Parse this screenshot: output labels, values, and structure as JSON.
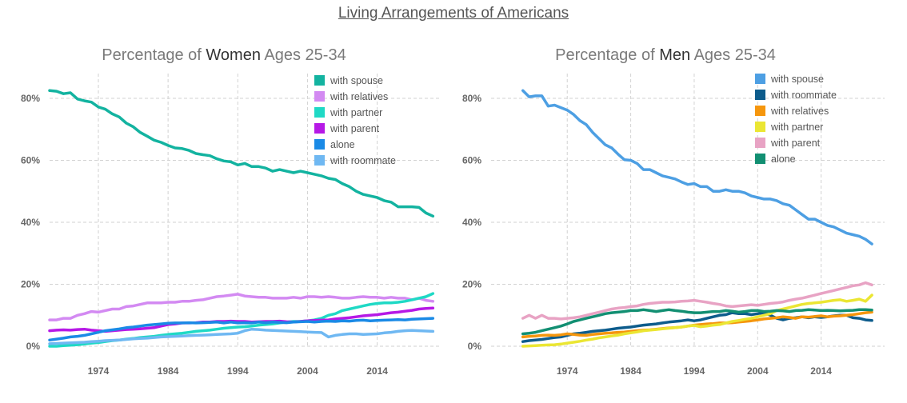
{
  "main_title": "Living Arrangements of Americans",
  "chart_data": [
    {
      "type": "line",
      "title_parts": [
        "Percentage of ",
        "Women",
        " Ages 25-34"
      ],
      "x_ticks": [
        1974,
        1984,
        1994,
        2004,
        2014
      ],
      "y_ticks": [
        "0%",
        "20%",
        "40%",
        "60%",
        "80%"
      ],
      "xlim": [
        1967,
        2023
      ],
      "ylim": [
        0,
        88
      ],
      "grid": true,
      "legend_position": "top-right",
      "x": [
        1967,
        1968,
        1969,
        1970,
        1971,
        1972,
        1973,
        1974,
        1975,
        1976,
        1977,
        1978,
        1979,
        1980,
        1981,
        1982,
        1983,
        1984,
        1985,
        1986,
        1987,
        1988,
        1989,
        1990,
        1991,
        1992,
        1993,
        1994,
        1995,
        1996,
        1997,
        1998,
        1999,
        2000,
        2001,
        2002,
        2003,
        2004,
        2005,
        2006,
        2007,
        2008,
        2009,
        2010,
        2011,
        2012,
        2013,
        2014,
        2015,
        2016,
        2017,
        2018,
        2019,
        2020,
        2021,
        2022
      ],
      "series": [
        {
          "name": "with spouse",
          "color": "#13b3a0",
          "values": [
            82.5,
            82.3,
            81.5,
            81.8,
            79.8,
            79.2,
            78.8,
            77.2,
            76.5,
            75,
            74,
            72,
            70.8,
            69,
            67.8,
            66.5,
            65.8,
            64.8,
            64,
            63.8,
            63.2,
            62.2,
            61.8,
            61.5,
            60.5,
            59.8,
            59.5,
            58.5,
            59,
            58,
            58,
            57.5,
            56.5,
            57,
            56.5,
            56,
            56.5,
            56,
            55.5,
            55,
            54.2,
            53.8,
            52.5,
            51.5,
            50,
            49,
            48.5,
            48,
            47,
            46.5,
            45,
            45,
            45,
            44.8,
            43,
            42
          ]
        },
        {
          "name": "with relatives",
          "color": "#d38af2",
          "values": [
            8.5,
            8.5,
            9,
            9,
            10,
            10.5,
            11.2,
            11,
            11.5,
            12,
            12,
            12.8,
            13,
            13.5,
            14,
            14,
            14,
            14.2,
            14.2,
            14.5,
            14.5,
            14.8,
            15,
            15.5,
            16,
            16.2,
            16.5,
            16.8,
            16.2,
            16,
            15.8,
            15.8,
            15.5,
            15.5,
            15.5,
            15.8,
            15.5,
            16,
            16,
            15.8,
            16,
            15.8,
            15.5,
            15.5,
            15.8,
            16,
            15.8,
            15.8,
            15.5,
            15.8,
            15.5,
            15.5,
            15,
            15.5,
            14.8,
            14.5
          ]
        },
        {
          "name": "with partner",
          "color": "#1fd9c5",
          "values": [
            0,
            0,
            0.2,
            0.3,
            0.5,
            0.7,
            1,
            1.2,
            1.5,
            1.8,
            2,
            2.3,
            2.5,
            2.8,
            3,
            3.2,
            3.5,
            3.8,
            4,
            4.2,
            4.5,
            4.8,
            5,
            5.2,
            5.5,
            5.8,
            6,
            6.2,
            6.3,
            6.5,
            6.8,
            7,
            7.2,
            7.5,
            7.8,
            8,
            8,
            8.2,
            8.5,
            9,
            10,
            10.5,
            11.5,
            12,
            12.5,
            13,
            13.5,
            13.8,
            14,
            14,
            14.2,
            14.5,
            15,
            15.5,
            16,
            17
          ]
        },
        {
          "name": "with parent",
          "color": "#b619e6",
          "values": [
            5,
            5.2,
            5.3,
            5.2,
            5.4,
            5.5,
            5.2,
            5,
            4.8,
            5,
            5.2,
            5.4,
            5.5,
            5.6,
            5.8,
            6,
            6.5,
            7,
            7.2,
            7.5,
            7.5,
            7.6,
            7.8,
            7.8,
            8,
            8,
            8.1,
            8,
            8,
            7.8,
            7.9,
            8,
            8,
            8.1,
            7.9,
            7.8,
            8,
            8.2,
            8.3,
            8.4,
            8.5,
            8.8,
            9,
            9.2,
            9.5,
            9.8,
            10,
            10.2,
            10.5,
            10.8,
            11,
            11.3,
            11.6,
            12,
            12.2,
            12.3
          ]
        },
        {
          "name": "alone",
          "color": "#1a8ae6",
          "values": [
            2,
            2.3,
            2.6,
            3,
            3.2,
            3.5,
            4,
            4.5,
            5,
            5.3,
            5.6,
            6,
            6.2,
            6.5,
            6.8,
            7,
            7.2,
            7.4,
            7.5,
            7.5,
            7.6,
            7.5,
            7.6,
            7.7,
            7.8,
            7.5,
            7.8,
            7.5,
            7.6,
            7.5,
            7.8,
            7.6,
            7.8,
            7.7,
            7.6,
            7.8,
            7.9,
            8,
            7.8,
            8,
            8.1,
            8,
            8.2,
            8.1,
            8.3,
            8.4,
            8.2,
            8.3,
            8.4,
            8.5,
            8.6,
            8.5,
            8.7,
            8.8,
            8.9,
            9
          ]
        },
        {
          "name": "with roommate",
          "color": "#6fb8f2",
          "values": [
            0.8,
            0.9,
            1,
            1.1,
            1.2,
            1.3,
            1.5,
            1.6,
            1.8,
            1.9,
            2,
            2.2,
            2.4,
            2.5,
            2.6,
            2.8,
            3,
            3.1,
            3.2,
            3.3,
            3.4,
            3.5,
            3.6,
            3.7,
            3.8,
            3.9,
            4,
            4.2,
            5,
            5.5,
            5.4,
            5.2,
            5.1,
            5,
            4.9,
            4.8,
            4.7,
            4.6,
            4.5,
            4.4,
            3,
            3.5,
            3.8,
            4,
            4,
            3.8,
            3.9,
            4,
            4.3,
            4.5,
            4.8,
            5,
            5.1,
            5,
            4.9,
            4.8
          ]
        }
      ]
    },
    {
      "type": "line",
      "title_parts": [
        "Percentage of ",
        "Men",
        " Ages 25-34"
      ],
      "x_ticks": [
        1974,
        1984,
        1994,
        2004,
        2014
      ],
      "y_ticks": [
        "0%",
        "20%",
        "40%",
        "60%",
        "80%"
      ],
      "xlim": [
        1962,
        2024
      ],
      "ylim": [
        0,
        88
      ],
      "grid": true,
      "legend_position": "top-right",
      "x": [
        1967,
        1968,
        1969,
        1970,
        1971,
        1972,
        1973,
        1974,
        1975,
        1976,
        1977,
        1978,
        1979,
        1980,
        1981,
        1982,
        1983,
        1984,
        1985,
        1986,
        1987,
        1988,
        1989,
        1990,
        1991,
        1992,
        1993,
        1994,
        1995,
        1996,
        1997,
        1998,
        1999,
        2000,
        2001,
        2002,
        2003,
        2004,
        2005,
        2006,
        2007,
        2008,
        2009,
        2010,
        2011,
        2012,
        2013,
        2014,
        2015,
        2016,
        2017,
        2018,
        2019,
        2020,
        2021,
        2022
      ],
      "series": [
        {
          "name": "with spouse",
          "color": "#4d9fe3",
          "values": [
            82.5,
            80.5,
            80.8,
            80.8,
            77.5,
            77.8,
            77,
            76.2,
            74.8,
            72.8,
            71.5,
            69,
            67,
            65,
            64,
            62,
            60.2,
            60,
            59,
            57,
            57,
            56,
            55,
            54.5,
            54,
            53,
            52.2,
            52.5,
            51.5,
            51.5,
            50,
            50,
            50.5,
            50,
            50,
            49.5,
            48.5,
            48,
            47.5,
            47.5,
            47,
            46,
            45.5,
            44,
            42.5,
            41,
            41,
            40,
            39,
            38.5,
            37.5,
            36.5,
            36,
            35.5,
            34.5,
            33
          ]
        },
        {
          "name": "with roommate",
          "color": "#0d5c8c",
          "values": [
            1.5,
            1.8,
            2,
            2.2,
            2.5,
            2.8,
            3,
            3.5,
            4,
            4.2,
            4.5,
            4.8,
            5,
            5.2,
            5.5,
            5.8,
            6,
            6.2,
            6.5,
            6.8,
            7,
            7.2,
            7.5,
            7.8,
            8,
            8.2,
            8.5,
            8.2,
            8.5,
            9,
            9.5,
            10,
            10.2,
            10.8,
            10.5,
            10.5,
            10.2,
            10.5,
            10.8,
            10,
            9,
            8.5,
            9,
            9.2,
            9.5,
            9.2,
            9.5,
            9.3,
            9.5,
            9.8,
            10,
            10,
            9.2,
            9,
            8.5,
            8.3
          ]
        },
        {
          "name": "with relatives",
          "color": "#f5960d",
          "values": [
            3,
            3.2,
            3.3,
            3.5,
            3.6,
            3.5,
            3.7,
            4,
            3.8,
            3.6,
            3.5,
            3.8,
            4,
            4.2,
            4.3,
            4.5,
            4.6,
            4.8,
            5,
            5.2,
            5.3,
            5.5,
            5.7,
            5.9,
            6,
            6.2,
            6.5,
            6.8,
            7,
            7.2,
            7.3,
            7.5,
            7.5,
            7.6,
            7.8,
            8,
            8.2,
            8.5,
            8.8,
            9,
            9.2,
            9.5,
            9.3,
            9,
            9.5,
            9.4,
            9.6,
            9.8,
            9.5,
            9.7,
            9.8,
            10,
            10.2,
            10.5,
            10.8,
            11
          ]
        },
        {
          "name": "with partner",
          "color": "#ebe633",
          "values": [
            0,
            0.1,
            0.2,
            0.3,
            0.4,
            0.5,
            0.7,
            1,
            1.3,
            1.6,
            2,
            2.3,
            2.7,
            3,
            3.3,
            3.6,
            4,
            4.3,
            4.6,
            5,
            5.2,
            5.4,
            5.6,
            5.8,
            6,
            6.2,
            6.5,
            6.7,
            6.3,
            6.5,
            6.8,
            7,
            7.5,
            8,
            8.3,
            8.7,
            9,
            9.5,
            10,
            10.5,
            11.5,
            12,
            12.5,
            13,
            13.5,
            13.8,
            14,
            14.2,
            14.5,
            14.8,
            15,
            14.5,
            14.8,
            15.2,
            14.5,
            16.5
          ]
        },
        {
          "name": "with parent",
          "color": "#e8a3c4",
          "values": [
            9,
            10,
            9,
            10,
            9,
            9,
            8.8,
            9,
            9.2,
            9.5,
            10,
            10.5,
            11,
            11.5,
            12,
            12.3,
            12.5,
            12.8,
            13,
            13.5,
            13.8,
            14,
            14.2,
            14.2,
            14.3,
            14.5,
            14.6,
            14.8,
            14.5,
            14.2,
            13.8,
            13.5,
            13,
            12.8,
            13,
            13.2,
            13.4,
            13.2,
            13.5,
            13.8,
            14,
            14.3,
            14.8,
            15.2,
            15.5,
            16,
            16.5,
            17,
            17.5,
            18,
            18.5,
            19,
            19.5,
            19.8,
            20.5,
            19.8
          ]
        },
        {
          "name": "alone",
          "color": "#128f72",
          "values": [
            4,
            4.2,
            4.5,
            5,
            5.5,
            6,
            6.5,
            7.2,
            8,
            8.5,
            9,
            9.5,
            10,
            10.5,
            10.8,
            11,
            11.2,
            11.5,
            11.5,
            11.8,
            11.5,
            11.2,
            11.5,
            11.8,
            11.5,
            11.3,
            11,
            10.8,
            10.8,
            11,
            11.2,
            11.2,
            11.5,
            11.3,
            11,
            11.2,
            11.5,
            11.5,
            11.2,
            11.3,
            11.5,
            11.4,
            11.2,
            11.5,
            11.6,
            11.8,
            11.7,
            11.5,
            11.6,
            11.5,
            11.4,
            11.5,
            11.6,
            11.8,
            11.8,
            11.7
          ]
        }
      ]
    }
  ]
}
